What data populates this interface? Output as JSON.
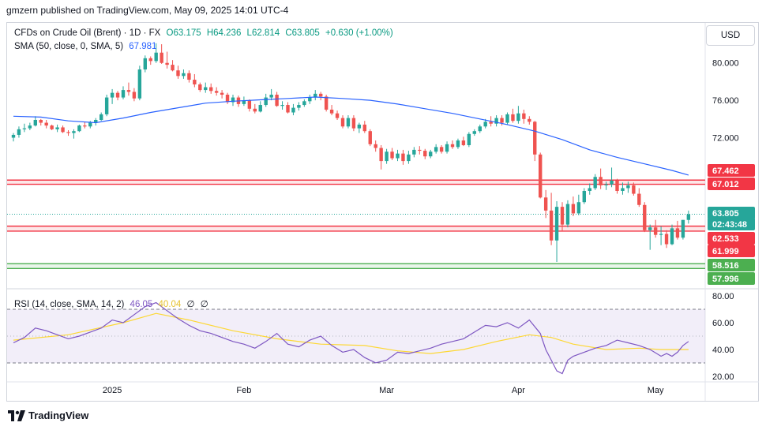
{
  "header": {
    "published": "gmzern published on TradingView.com, May 09, 2025 14:01 UTC-4"
  },
  "legend": {
    "symbol": "CFDs on Crude Oil (Brent) · 1D · FX",
    "open": "O63.175",
    "high": "H64.236",
    "low": "L62.814",
    "close": "C63.805",
    "change": "+0.630 (+1.00%)",
    "sma_label": "SMA (50, close, 0, SMA, 5)",
    "sma_value": "67.981",
    "rsi_label": "RSI (14, close, SMA, 14, 2)",
    "rsi_value": "46.05",
    "rsi_ma_value": "40.04",
    "rsi_extra1": "∅",
    "rsi_extra2": "∅"
  },
  "currency_button": "USD",
  "brand": "TradingView",
  "colors": {
    "up": "#26a69a",
    "down": "#ef5350",
    "sma": "#2962ff",
    "rsi": "#7e57c2",
    "rsi_ma": "#fdd835",
    "support": "#4caf50",
    "resistance": "#f23645"
  },
  "chart_data": {
    "type": "candlestick",
    "price_axis": {
      "ticks": [
        "80.000",
        "76.000",
        "72.000"
      ],
      "ylim": [
        56.0,
        84.2
      ]
    },
    "rsi_axis": {
      "ticks": [
        "80.00",
        "60.00",
        "40.00",
        "20.00"
      ],
      "ylim": [
        17,
        83
      ],
      "bands": [
        30,
        70
      ],
      "mid": 50
    },
    "time_axis": [
      "2025",
      "Feb",
      "Mar",
      "Apr",
      "May"
    ],
    "price_labels": [
      {
        "text": "67.462",
        "value": 67.462,
        "color": "#f23645"
      },
      {
        "text": "67.012",
        "value": 67.012,
        "color": "#f23645"
      },
      {
        "text": "63.805",
        "value": 63.805,
        "color": "#26a69a"
      },
      {
        "text": "02:43:48",
        "value": 63.805,
        "color": "#26a69a"
      },
      {
        "text": "62.533",
        "value": 62.533,
        "color": "#f23645"
      },
      {
        "text": "61.999",
        "value": 61.999,
        "color": "#f23645"
      },
      {
        "text": "58.516",
        "value": 58.516,
        "color": "#4caf50"
      },
      {
        "text": "57.996",
        "value": 57.996,
        "color": "#4caf50"
      }
    ],
    "zones": [
      {
        "top": 67.462,
        "bottom": 67.012,
        "color": "#f23645"
      },
      {
        "top": 62.533,
        "bottom": 61.999,
        "color": "#f23645"
      },
      {
        "top": 58.516,
        "bottom": 57.996,
        "color": "#4caf50"
      }
    ],
    "last_price": 63.805,
    "candles": [
      [
        72.0,
        72.5,
        71.6,
        72.3
      ],
      [
        72.3,
        73.2,
        72.0,
        72.9
      ],
      [
        72.9,
        73.5,
        72.6,
        73.0
      ],
      [
        73.0,
        73.6,
        72.8,
        73.3
      ],
      [
        73.3,
        74.3,
        73.2,
        73.9
      ],
      [
        73.9,
        74.0,
        73.3,
        73.6
      ],
      [
        73.6,
        73.9,
        73.0,
        73.3
      ],
      [
        73.3,
        73.4,
        72.8,
        72.9
      ],
      [
        72.9,
        73.4,
        72.6,
        73.1
      ],
      [
        73.1,
        73.3,
        72.5,
        72.6
      ],
      [
        72.6,
        72.8,
        72.2,
        72.5
      ],
      [
        72.5,
        72.9,
        71.9,
        72.7
      ],
      [
        72.7,
        73.4,
        72.6,
        73.3
      ],
      [
        73.3,
        73.7,
        73.0,
        73.2
      ],
      [
        73.2,
        73.8,
        73.0,
        73.6
      ],
      [
        73.6,
        74.1,
        73.3,
        73.9
      ],
      [
        73.9,
        74.7,
        73.8,
        74.5
      ],
      [
        74.5,
        76.6,
        74.3,
        76.3
      ],
      [
        76.3,
        77.2,
        75.6,
        76.8
      ],
      [
        76.8,
        77.0,
        76.0,
        76.3
      ],
      [
        76.3,
        77.5,
        76.1,
        77.1
      ],
      [
        77.1,
        77.9,
        76.5,
        76.9
      ],
      [
        76.9,
        77.3,
        75.9,
        76.2
      ],
      [
        76.2,
        79.7,
        76.0,
        79.3
      ],
      [
        79.3,
        80.8,
        79.0,
        80.5
      ],
      [
        80.5,
        80.7,
        79.8,
        80.2
      ],
      [
        80.2,
        82.1,
        80.0,
        81.1
      ],
      [
        81.1,
        82.0,
        79.9,
        80.0
      ],
      [
        80.0,
        81.2,
        79.4,
        79.8
      ],
      [
        79.8,
        80.3,
        79.1,
        79.2
      ],
      [
        79.2,
        79.7,
        78.3,
        78.6
      ],
      [
        78.6,
        79.3,
        78.3,
        78.9
      ],
      [
        78.9,
        79.2,
        77.9,
        78.2
      ],
      [
        78.2,
        78.8,
        77.4,
        77.7
      ],
      [
        77.7,
        77.9,
        76.9,
        77.1
      ],
      [
        77.1,
        77.9,
        76.8,
        77.4
      ],
      [
        77.4,
        77.8,
        76.7,
        77.0
      ],
      [
        77.0,
        77.4,
        76.5,
        76.8
      ],
      [
        76.8,
        77.1,
        76.2,
        76.6
      ],
      [
        76.6,
        76.8,
        75.6,
        75.8
      ],
      [
        75.8,
        76.6,
        75.4,
        76.3
      ],
      [
        76.3,
        76.5,
        75.3,
        75.6
      ],
      [
        75.6,
        76.4,
        75.4,
        76.0
      ],
      [
        76.0,
        76.1,
        74.8,
        75.1
      ],
      [
        75.1,
        75.6,
        74.6,
        74.8
      ],
      [
        74.8,
        75.9,
        74.7,
        75.5
      ],
      [
        75.5,
        76.7,
        75.3,
        76.3
      ],
      [
        76.3,
        77.2,
        76.0,
        76.6
      ],
      [
        76.6,
        76.9,
        75.3,
        75.4
      ],
      [
        75.4,
        75.9,
        75.0,
        75.5
      ],
      [
        75.5,
        75.8,
        74.6,
        74.7
      ],
      [
        74.7,
        75.6,
        74.4,
        75.2
      ],
      [
        75.2,
        75.8,
        74.9,
        75.5
      ],
      [
        75.5,
        76.1,
        75.3,
        75.9
      ],
      [
        75.9,
        76.6,
        75.6,
        76.3
      ],
      [
        76.3,
        77.1,
        76.0,
        76.7
      ],
      [
        76.7,
        76.9,
        76.0,
        76.4
      ],
      [
        76.4,
        76.6,
        74.8,
        75.0
      ],
      [
        75.0,
        75.5,
        74.4,
        74.6
      ],
      [
        74.6,
        74.9,
        73.9,
        74.1
      ],
      [
        74.1,
        74.4,
        73.0,
        73.2
      ],
      [
        73.2,
        74.4,
        73.0,
        74.1
      ],
      [
        74.1,
        74.4,
        72.7,
        73.0
      ],
      [
        73.0,
        73.6,
        72.5,
        73.4
      ],
      [
        73.4,
        73.8,
        72.5,
        72.7
      ],
      [
        72.7,
        72.9,
        71.1,
        71.3
      ],
      [
        71.3,
        71.7,
        70.5,
        70.9
      ],
      [
        70.9,
        71.2,
        68.6,
        69.5
      ],
      [
        69.5,
        70.8,
        69.2,
        70.5
      ],
      [
        70.5,
        70.9,
        69.6,
        69.8
      ],
      [
        69.8,
        70.7,
        69.5,
        70.3
      ],
      [
        70.3,
        70.7,
        69.1,
        69.5
      ],
      [
        69.5,
        70.6,
        69.2,
        70.2
      ],
      [
        70.2,
        71.0,
        69.9,
        70.7
      ],
      [
        70.7,
        71.1,
        70.2,
        70.6
      ],
      [
        70.6,
        70.8,
        69.7,
        70.0
      ],
      [
        70.0,
        70.7,
        69.8,
        70.5
      ],
      [
        70.5,
        71.3,
        70.3,
        71.0
      ],
      [
        71.0,
        71.2,
        70.3,
        70.5
      ],
      [
        70.5,
        71.6,
        70.3,
        71.3
      ],
      [
        71.3,
        71.7,
        70.8,
        71.0
      ],
      [
        71.0,
        71.9,
        70.8,
        71.7
      ],
      [
        71.7,
        72.1,
        71.1,
        71.2
      ],
      [
        71.2,
        72.6,
        71.0,
        72.4
      ],
      [
        72.4,
        72.9,
        72.2,
        72.7
      ],
      [
        72.7,
        73.4,
        72.5,
        73.2
      ],
      [
        73.2,
        74.0,
        73.0,
        73.7
      ],
      [
        73.7,
        74.3,
        73.2,
        73.5
      ],
      [
        73.5,
        74.4,
        73.2,
        74.1
      ],
      [
        74.1,
        74.4,
        73.3,
        73.6
      ],
      [
        73.6,
        74.7,
        73.4,
        74.5
      ],
      [
        74.5,
        75.1,
        73.6,
        73.8
      ],
      [
        73.8,
        75.4,
        73.5,
        74.6
      ],
      [
        74.6,
        75.0,
        73.5,
        74.0
      ],
      [
        74.0,
        74.3,
        73.4,
        73.7
      ],
      [
        73.7,
        73.8,
        69.5,
        70.2
      ],
      [
        70.2,
        70.4,
        65.5,
        65.6
      ],
      [
        65.6,
        66.4,
        63.4,
        64.2
      ],
      [
        64.2,
        66.1,
        60.5,
        61.0
      ],
      [
        61.0,
        65.2,
        58.7,
        64.6
      ],
      [
        64.6,
        65.1,
        62.0,
        62.7
      ],
      [
        62.7,
        65.3,
        62.4,
        64.9
      ],
      [
        64.9,
        65.7,
        63.6,
        63.9
      ],
      [
        63.9,
        65.9,
        63.7,
        65.1
      ],
      [
        65.1,
        66.6,
        64.9,
        66.3
      ],
      [
        66.3,
        67.1,
        65.9,
        66.6
      ],
      [
        66.6,
        68.1,
        66.4,
        67.8
      ],
      [
        67.8,
        68.7,
        66.5,
        66.9
      ],
      [
        66.9,
        67.3,
        66.4,
        67.0
      ],
      [
        67.0,
        68.8,
        66.7,
        67.4
      ],
      [
        67.4,
        67.6,
        66.0,
        66.3
      ],
      [
        66.3,
        67.2,
        65.9,
        66.6
      ],
      [
        66.6,
        67.3,
        66.1,
        66.9
      ],
      [
        66.9,
        67.2,
        65.8,
        66.0
      ],
      [
        66.0,
        66.6,
        64.6,
        64.8
      ],
      [
        64.8,
        65.1,
        61.9,
        62.1
      ],
      [
        62.1,
        62.7,
        60.0,
        62.4
      ],
      [
        62.4,
        63.2,
        61.3,
        61.6
      ],
      [
        61.6,
        62.5,
        60.5,
        61.7
      ],
      [
        61.7,
        62.1,
        60.2,
        60.6
      ],
      [
        60.6,
        62.7,
        60.5,
        62.3
      ],
      [
        62.3,
        63.1,
        61.1,
        61.3
      ],
      [
        61.3,
        63.2,
        61.1,
        63.2
      ],
      [
        63.2,
        64.2,
        62.8,
        63.8
      ]
    ],
    "sma": [
      [
        0,
        74.3
      ],
      [
        5,
        74.2
      ],
      [
        10,
        73.8
      ],
      [
        15,
        73.6
      ],
      [
        20,
        74.1
      ],
      [
        25,
        74.7
      ],
      [
        30,
        75.2
      ],
      [
        35,
        75.7
      ],
      [
        40,
        75.9
      ],
      [
        45,
        76.05
      ],
      [
        50,
        76.2
      ],
      [
        55,
        76.35
      ],
      [
        60,
        76.2
      ],
      [
        65,
        76.0
      ],
      [
        70,
        75.6
      ],
      [
        75,
        75.1
      ],
      [
        80,
        74.6
      ],
      [
        85,
        74.0
      ],
      [
        90,
        73.4
      ],
      [
        95,
        72.7
      ],
      [
        100,
        71.8
      ],
      [
        105,
        70.7
      ],
      [
        110,
        69.9
      ],
      [
        115,
        69.2
      ],
      [
        120,
        68.5
      ],
      [
        123,
        68.0
      ]
    ],
    "rsi": [
      [
        0,
        45
      ],
      [
        2,
        49
      ],
      [
        4,
        56
      ],
      [
        6,
        54
      ],
      [
        8,
        51
      ],
      [
        10,
        48
      ],
      [
        12,
        50
      ],
      [
        14,
        53
      ],
      [
        16,
        56
      ],
      [
        18,
        62
      ],
      [
        20,
        60
      ],
      [
        22,
        66
      ],
      [
        24,
        72
      ],
      [
        26,
        75
      ],
      [
        28,
        69
      ],
      [
        30,
        63
      ],
      [
        32,
        58
      ],
      [
        34,
        54
      ],
      [
        36,
        52
      ],
      [
        38,
        49
      ],
      [
        40,
        46
      ],
      [
        42,
        44
      ],
      [
        44,
        41
      ],
      [
        46,
        46
      ],
      [
        48,
        52
      ],
      [
        50,
        44
      ],
      [
        52,
        42
      ],
      [
        54,
        47
      ],
      [
        56,
        50
      ],
      [
        58,
        43
      ],
      [
        60,
        38
      ],
      [
        62,
        40
      ],
      [
        64,
        34
      ],
      [
        66,
        30
      ],
      [
        68,
        32
      ],
      [
        70,
        38
      ],
      [
        72,
        37
      ],
      [
        74,
        39
      ],
      [
        76,
        41
      ],
      [
        78,
        44
      ],
      [
        80,
        46
      ],
      [
        82,
        48
      ],
      [
        84,
        53
      ],
      [
        86,
        58
      ],
      [
        88,
        57
      ],
      [
        90,
        60
      ],
      [
        92,
        56
      ],
      [
        94,
        62
      ],
      [
        96,
        52
      ],
      [
        97,
        40
      ],
      [
        98,
        32
      ],
      [
        99,
        24
      ],
      [
        100,
        22
      ],
      [
        101,
        32
      ],
      [
        102,
        35
      ],
      [
        104,
        38
      ],
      [
        106,
        41
      ],
      [
        108,
        43
      ],
      [
        110,
        47
      ],
      [
        112,
        45
      ],
      [
        114,
        43
      ],
      [
        116,
        40
      ],
      [
        118,
        35
      ],
      [
        119,
        37
      ],
      [
        120,
        35
      ],
      [
        121,
        38
      ],
      [
        122,
        43
      ],
      [
        123,
        46
      ]
    ],
    "rsi_ma": [
      [
        0,
        47
      ],
      [
        10,
        51
      ],
      [
        20,
        60
      ],
      [
        26,
        67
      ],
      [
        32,
        62
      ],
      [
        40,
        54
      ],
      [
        48,
        48
      ],
      [
        56,
        44
      ],
      [
        64,
        43
      ],
      [
        70,
        39
      ],
      [
        76,
        37
      ],
      [
        82,
        40
      ],
      [
        88,
        46
      ],
      [
        94,
        51
      ],
      [
        98,
        49
      ],
      [
        102,
        44
      ],
      [
        108,
        40
      ],
      [
        114,
        41
      ],
      [
        118,
        40
      ],
      [
        123,
        40
      ]
    ]
  }
}
